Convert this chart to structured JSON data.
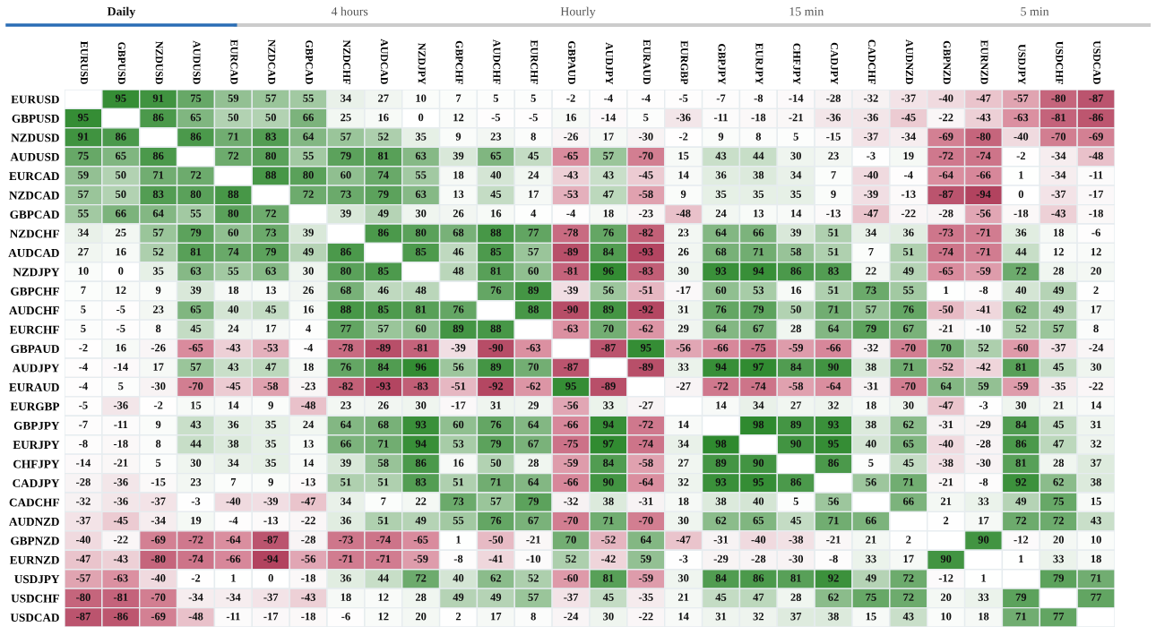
{
  "chart_data": {
    "type": "heatmap",
    "annotations": [
      "Daily",
      "4 hours",
      "Hourly",
      "15 min",
      "5 min"
    ],
    "categories": [
      "EURUSD",
      "GBPUSD",
      "NZDUSD",
      "AUDUSD",
      "EURCAD",
      "NZDCAD",
      "GBPCAD",
      "NZDCHF",
      "AUDCAD",
      "NZDJPY",
      "GBPCHF",
      "AUDCHF",
      "EURCHF",
      "GBPAUD",
      "AUDJPY",
      "EURAUD",
      "EURGBP",
      "GBPJPY",
      "EURJPY",
      "CHFJPY",
      "CADJPY",
      "CADCHF",
      "AUDNZD",
      "GBPNZD",
      "EURNZD",
      "USDJPY",
      "USDCHF",
      "USDCAD"
    ],
    "y_categories": [
      "EURUSD",
      "GBPUSD",
      "NZDUSD",
      "AUDUSD",
      "EURCAD",
      "NZDCAD",
      "GBPCAD",
      "NZDCHF",
      "AUDCAD",
      "NZDJPY",
      "GBPCHF",
      "AUDCHF",
      "EURCHF",
      "GBPAUD",
      "AUDJPY",
      "EURAUD",
      "EURGBP",
      "GBPJPY",
      "EURJPY",
      "CHFJPY",
      "CADJPY",
      "CADCHF",
      "AUDNZD",
      "GBPNZD",
      "EURNZD",
      "USDJPY",
      "USDCHF",
      "USDCAD"
    ],
    "cells": [
      [
        null,
        95,
        91,
        75,
        59,
        57,
        55,
        34,
        27,
        10,
        7,
        5,
        5,
        -2,
        -4,
        -4,
        -5,
        -7,
        -8,
        -14,
        -28,
        -32,
        -37,
        -40,
        -47,
        -57,
        -80,
        -87
      ],
      [
        95,
        null,
        86,
        65,
        50,
        50,
        66,
        25,
        16,
        0,
        12,
        -5,
        -5,
        16,
        -14,
        5,
        -36,
        -11,
        -18,
        -21,
        -36,
        -36,
        -45,
        -22,
        -43,
        -63,
        -81,
        -86
      ],
      [
        91,
        86,
        null,
        86,
        71,
        83,
        64,
        57,
        52,
        35,
        9,
        23,
        8,
        -26,
        17,
        -30,
        -2,
        9,
        8,
        5,
        -15,
        -37,
        -34,
        -69,
        -80,
        -40,
        -70,
        -69
      ],
      [
        75,
        65,
        86,
        null,
        72,
        80,
        55,
        79,
        81,
        63,
        39,
        65,
        45,
        -65,
        57,
        -70,
        15,
        43,
        44,
        30,
        23,
        -3,
        19,
        -72,
        -74,
        -2,
        -34,
        -48
      ],
      [
        59,
        50,
        71,
        72,
        null,
        88,
        80,
        60,
        74,
        55,
        18,
        40,
        24,
        -43,
        43,
        -45,
        14,
        36,
        38,
        34,
        7,
        -40,
        -4,
        -64,
        -66,
        1,
        -34,
        -11
      ],
      [
        57,
        50,
        83,
        80,
        88,
        null,
        72,
        73,
        79,
        63,
        13,
        45,
        17,
        -53,
        47,
        -58,
        9,
        35,
        35,
        35,
        9,
        -39,
        -13,
        -87,
        -94,
        0,
        -37,
        -17
      ],
      [
        55,
        66,
        64,
        55,
        80,
        72,
        null,
        39,
        49,
        30,
        26,
        16,
        4,
        -4,
        18,
        -23,
        -48,
        24,
        13,
        14,
        -13,
        -47,
        -22,
        -28,
        -56,
        -18,
        -43,
        -18
      ],
      [
        34,
        25,
        57,
        79,
        60,
        73,
        39,
        null,
        86,
        80,
        68,
        88,
        77,
        -78,
        76,
        -82,
        23,
        64,
        66,
        39,
        51,
        34,
        36,
        -73,
        -71,
        36,
        18,
        -6
      ],
      [
        27,
        16,
        52,
        81,
        74,
        79,
        49,
        86,
        null,
        85,
        46,
        85,
        57,
        -89,
        84,
        -93,
        26,
        68,
        71,
        58,
        51,
        7,
        51,
        -74,
        -71,
        44,
        12,
        12
      ],
      [
        10,
        0,
        35,
        63,
        55,
        63,
        30,
        80,
        85,
        null,
        48,
        81,
        60,
        -81,
        96,
        -83,
        30,
        93,
        94,
        86,
        83,
        22,
        49,
        -65,
        -59,
        72,
        28,
        20
      ],
      [
        7,
        12,
        9,
        39,
        18,
        13,
        26,
        68,
        46,
        48,
        null,
        76,
        89,
        -39,
        56,
        -51,
        -17,
        60,
        53,
        16,
        51,
        73,
        55,
        1,
        -8,
        40,
        49,
        2
      ],
      [
        5,
        -5,
        23,
        65,
        40,
        45,
        16,
        88,
        85,
        81,
        76,
        null,
        88,
        -90,
        89,
        -92,
        31,
        76,
        79,
        50,
        71,
        57,
        76,
        -50,
        -41,
        62,
        49,
        17
      ],
      [
        5,
        -5,
        8,
        45,
        24,
        17,
        4,
        77,
        57,
        60,
        89,
        88,
        null,
        -63,
        70,
        -62,
        29,
        64,
        67,
        28,
        64,
        79,
        67,
        -21,
        -10,
        52,
        57,
        8
      ],
      [
        -2,
        16,
        -26,
        -65,
        -43,
        -53,
        -4,
        -78,
        -89,
        -81,
        -39,
        -90,
        -63,
        null,
        -87,
        95,
        -56,
        -66,
        -75,
        -59,
        -66,
        -32,
        -70,
        70,
        52,
        -60,
        -37,
        -24
      ],
      [
        -4,
        -14,
        17,
        57,
        43,
        47,
        18,
        76,
        84,
        96,
        56,
        89,
        70,
        -87,
        null,
        -89,
        33,
        94,
        97,
        84,
        90,
        38,
        71,
        -52,
        -42,
        81,
        45,
        30
      ],
      [
        -4,
        5,
        -30,
        -70,
        -45,
        -58,
        -23,
        -82,
        -93,
        -83,
        -51,
        -92,
        -62,
        95,
        -89,
        null,
        -27,
        -72,
        -74,
        -58,
        -64,
        -31,
        -70,
        64,
        59,
        -59,
        -35,
        -22
      ],
      [
        -5,
        -36,
        -2,
        15,
        14,
        9,
        -48,
        23,
        26,
        30,
        -17,
        31,
        29,
        -56,
        33,
        -27,
        null,
        14,
        34,
        27,
        32,
        18,
        30,
        -47,
        -3,
        30,
        21,
        14
      ],
      [
        -7,
        -11,
        9,
        43,
        36,
        35,
        24,
        64,
        68,
        93,
        60,
        76,
        64,
        -66,
        94,
        -72,
        14,
        null,
        98,
        89,
        93,
        38,
        62,
        -31,
        -29,
        84,
        45,
        31
      ],
      [
        -8,
        -18,
        8,
        44,
        38,
        35,
        13,
        66,
        71,
        94,
        53,
        79,
        67,
        -75,
        97,
        -74,
        34,
        98,
        null,
        90,
        95,
        40,
        65,
        -40,
        -28,
        86,
        47,
        32
      ],
      [
        -14,
        -21,
        5,
        30,
        34,
        35,
        14,
        39,
        58,
        86,
        16,
        50,
        28,
        -59,
        84,
        -58,
        27,
        89,
        90,
        null,
        86,
        5,
        45,
        -38,
        -30,
        81,
        28,
        37
      ],
      [
        -28,
        -36,
        -15,
        23,
        7,
        9,
        -13,
        51,
        51,
        83,
        51,
        71,
        64,
        -66,
        90,
        -64,
        32,
        93,
        95,
        86,
        null,
        56,
        71,
        -21,
        -8,
        92,
        62,
        38
      ],
      [
        -32,
        -36,
        -37,
        -3,
        -40,
        -39,
        -47,
        34,
        7,
        22,
        73,
        57,
        79,
        -32,
        38,
        -31,
        18,
        38,
        40,
        5,
        56,
        null,
        66,
        21,
        33,
        49,
        75,
        15
      ],
      [
        -37,
        -45,
        -34,
        19,
        -4,
        -13,
        -22,
        36,
        51,
        49,
        55,
        76,
        67,
        -70,
        71,
        -70,
        30,
        62,
        65,
        45,
        71,
        66,
        null,
        2,
        17,
        72,
        72,
        43
      ],
      [
        -40,
        -22,
        -69,
        -72,
        -64,
        -87,
        -28,
        -73,
        -74,
        -65,
        1,
        -50,
        -21,
        70,
        -52,
        64,
        -47,
        -31,
        -40,
        -38,
        -21,
        21,
        2,
        null,
        90,
        -12,
        20,
        10
      ],
      [
        -47,
        -43,
        -80,
        -74,
        -66,
        -94,
        -56,
        -71,
        -71,
        -59,
        -8,
        -41,
        -10,
        52,
        -42,
        59,
        -3,
        -29,
        -28,
        -30,
        -8,
        33,
        17,
        90,
        null,
        1,
        33,
        18
      ],
      [
        -57,
        -63,
        -40,
        -2,
        1,
        0,
        -18,
        36,
        44,
        72,
        40,
        62,
        52,
        -60,
        81,
        -59,
        30,
        84,
        86,
        81,
        92,
        49,
        72,
        -12,
        1,
        null,
        79,
        71
      ],
      [
        -80,
        -81,
        -70,
        -34,
        -34,
        -37,
        -43,
        18,
        12,
        28,
        49,
        49,
        57,
        -37,
        45,
        -35,
        21,
        45,
        47,
        28,
        62,
        75,
        72,
        20,
        33,
        79,
        null,
        77
      ],
      [
        -87,
        -86,
        -69,
        -48,
        -11,
        -17,
        -18,
        -6,
        12,
        20,
        2,
        17,
        8,
        -24,
        30,
        -22,
        14,
        31,
        32,
        37,
        38,
        15,
        43,
        10,
        18,
        71,
        77,
        null
      ]
    ],
    "data_labels": true
  }
}
